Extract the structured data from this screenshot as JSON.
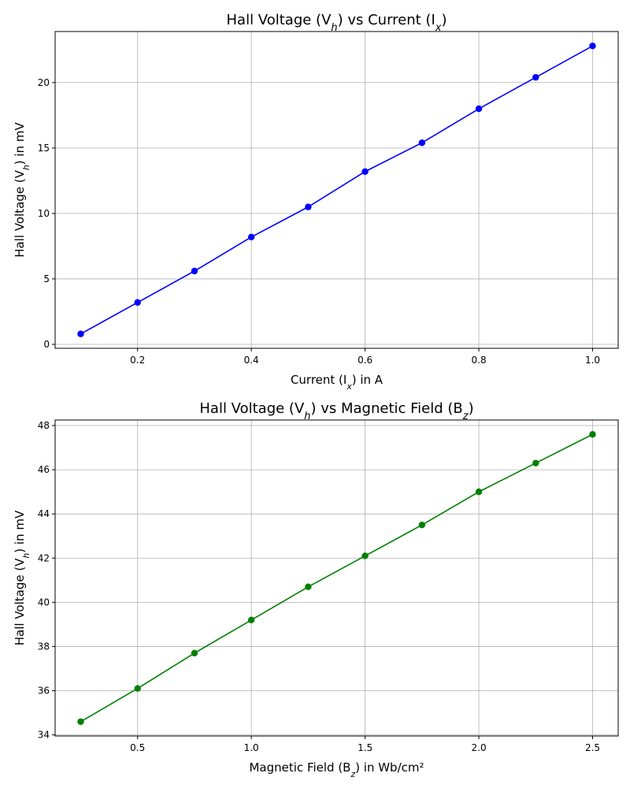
{
  "chart_data": [
    {
      "type": "line",
      "title": {
        "pre": "Hall Voltage (V",
        "sub": "h",
        "post": ") vs Current (I",
        "sub2": "x",
        "post2": ")"
      },
      "xlabel": {
        "pre": "Current (I",
        "sub": "x",
        "post": ") in A"
      },
      "ylabel": {
        "pre": "Hall Voltage (V",
        "sub": "h",
        "post": ") in mV"
      },
      "x": [
        0.1,
        0.2,
        0.3,
        0.4,
        0.5,
        0.6,
        0.7,
        0.8,
        0.9,
        1.0
      ],
      "series": [
        {
          "values": [
            0.8,
            3.2,
            5.6,
            8.2,
            10.5,
            13.2,
            15.4,
            18.0,
            20.4,
            22.8
          ],
          "color": "#0000ff"
        }
      ],
      "xlim": [
        0.055,
        1.045
      ],
      "ylim": [
        -0.3,
        23.9
      ],
      "xticks": [
        0.2,
        0.4,
        0.6,
        0.8,
        1.0
      ],
      "xtick_labels": [
        "0.2",
        "0.4",
        "0.6",
        "0.8",
        "1.0"
      ],
      "yticks": [
        0,
        5,
        10,
        15,
        20
      ],
      "ytick_labels": [
        "0",
        "5",
        "10",
        "15",
        "20"
      ],
      "grid": true,
      "marker": "circle"
    },
    {
      "type": "line",
      "title": {
        "pre": "Hall Voltage (V",
        "sub": "h",
        "post": ") vs Magnetic Field (B",
        "sub2": "z",
        "post2": ")"
      },
      "xlabel": {
        "pre": "Magnetic Field (B",
        "sub": "z",
        "post": ") in Wb/cm²"
      },
      "ylabel": {
        "pre": "Hall Voltage (V",
        "sub": "h",
        "post": ") in mV"
      },
      "x": [
        0.25,
        0.5,
        0.75,
        1.0,
        1.25,
        1.5,
        1.75,
        2.0,
        2.25,
        2.5
      ],
      "series": [
        {
          "values": [
            34.6,
            36.1,
            37.7,
            39.2,
            40.7,
            42.1,
            43.5,
            45.0,
            46.3,
            47.6
          ],
          "color": "#008000"
        }
      ],
      "xlim": [
        0.1375,
        2.6125
      ],
      "ylim": [
        33.95,
        48.25
      ],
      "xticks": [
        0.5,
        1.0,
        1.5,
        2.0,
        2.5
      ],
      "xtick_labels": [
        "0.5",
        "1.0",
        "1.5",
        "2.0",
        "2.5"
      ],
      "yticks": [
        34,
        36,
        38,
        40,
        42,
        44,
        46,
        48
      ],
      "ytick_labels": [
        "34",
        "36",
        "38",
        "40",
        "42",
        "44",
        "46",
        "48"
      ],
      "grid": true,
      "marker": "circle"
    }
  ]
}
